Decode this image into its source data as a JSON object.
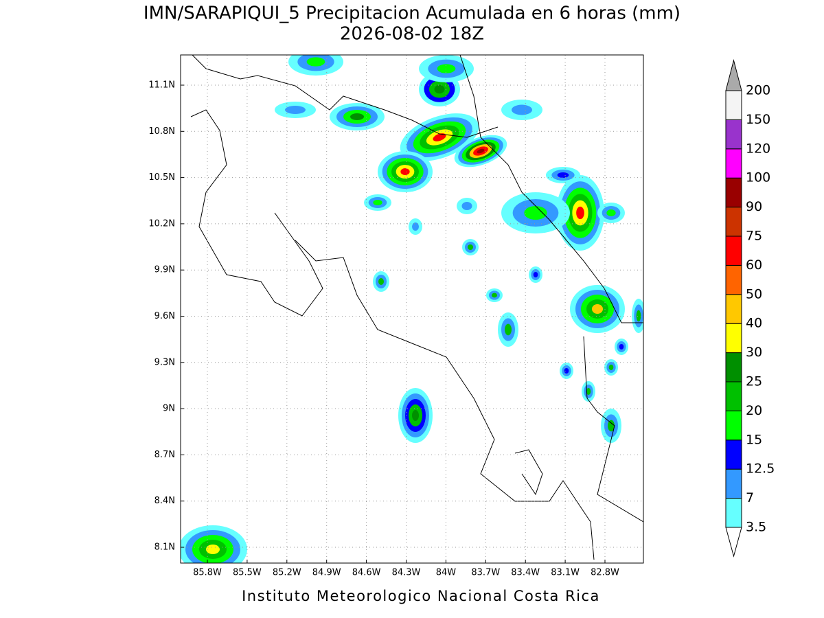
{
  "title": "IMN/SARAPIQUI_5 Precipitacion Acumulada en 6 horas (mm)",
  "subtitle": "2026-08-02 18Z",
  "footer": "Instituto Meteorologico Nacional Costa Rica",
  "map": {
    "lat_labels": [
      "11.1N",
      "10.8N",
      "10.5N",
      "10.2N",
      "9.9N",
      "9.6N",
      "9.3N",
      "9N",
      "8.7N",
      "8.4N",
      "8.1N"
    ],
    "lon_labels": [
      "85.8W",
      "85.5W",
      "85.2W",
      "84.9W",
      "84.6W",
      "84.3W",
      "84W",
      "83.7W",
      "83.4W",
      "83.1W",
      "82.8W"
    ]
  },
  "colorbar": {
    "levels": [
      3.5,
      7,
      12.5,
      15,
      20,
      25,
      30,
      40,
      50,
      60,
      75,
      90,
      100,
      120,
      150,
      200
    ],
    "colors": [
      "#66ffff",
      "#3399ff",
      "#0000ff",
      "#00ff00",
      "#00c000",
      "#008f00",
      "#ffff00",
      "#ffc800",
      "#ff6400",
      "#ff0000",
      "#cc3300",
      "#990000",
      "#ff00ff",
      "#9933cc",
      "#f4f4f4"
    ],
    "under_color": "#ffffff",
    "over_color": "#aaaaaa"
  }
}
